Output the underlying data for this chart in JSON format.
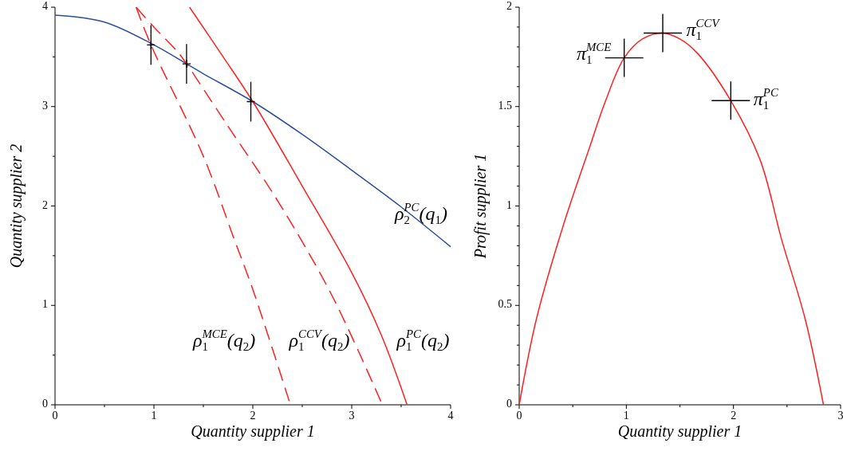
{
  "chart_data": [
    {
      "type": "line",
      "xlabel": "Quantity supplier 1",
      "ylabel": "Quantity supplier 2",
      "xlim": [
        0,
        4
      ],
      "ylim": [
        0,
        4
      ],
      "xticks": [
        0,
        {
          "value": 0.5,
          "label": null
        },
        1,
        {
          "value": 1.5,
          "label": null
        },
        2,
        {
          "value": 2.5,
          "label": null
        },
        3,
        {
          "value": 3.5,
          "label": null
        },
        4
      ],
      "yticks": [
        0,
        {
          "value": 0.5,
          "label": null
        },
        1,
        {
          "value": 1.5,
          "label": null
        },
        2,
        {
          "value": 2.5,
          "label": null
        },
        3,
        {
          "value": 3.5,
          "label": null
        },
        4
      ],
      "series": [
        {
          "name": "ρ$_{2}$$^{PC}$(q$_{1}$)",
          "color": "#2b4ea0",
          "line_style": "solid",
          "x": [
            0,
            0.5,
            1,
            1.33,
            1.5,
            2,
            2.5,
            3,
            3.5,
            4
          ],
          "values": [
            3.92,
            3.85,
            3.62,
            3.43,
            3.33,
            3.05,
            2.72,
            2.36,
            1.99,
            1.59
          ]
        },
        {
          "name": "ρ$_{1}$$^{PC}$(q$_{2}$)",
          "color": "#ff2020",
          "line_style": "solid",
          "x": [
            1.36,
            1.7,
            2,
            2.5,
            3,
            3.3,
            3.56
          ],
          "values": [
            4,
            3.5,
            3.05,
            2.2,
            1.33,
            0.7,
            0
          ]
        },
        {
          "name": "ρ$_{1}$$^{CCV}$(q$_{2}$)",
          "color": "#ff2020",
          "line_style": "dashed",
          "x": [
            0.82,
            1,
            1.24,
            1.33,
            1.75,
            2.24,
            2.8,
            3.31
          ],
          "values": [
            4,
            3.8,
            3.55,
            3.43,
            2.8,
            2.07,
            1.1,
            0
          ]
        },
        {
          "name": "ρ$_{1}$$^{MCE}$(q$_{2}$)",
          "color": "#ff2020",
          "line_style": "dashed",
          "x": [
            0.82,
            0.97,
            1.5,
            1.81,
            2,
            2.38
          ],
          "values": [
            4,
            3.62,
            2.5,
            1.67,
            1.16,
            0
          ]
        },
        {
          "type": "scatter",
          "color": "#000000",
          "marker": "cross",
          "x": [
            0.97,
            1.33,
            1.98
          ],
          "values": [
            3.62,
            3.43,
            3.05
          ],
          "errors": [
            0.2,
            0.2,
            0.2
          ]
        }
      ]
    },
    {
      "type": "line",
      "xlabel": "Quantity supplier 1",
      "ylabel": "Profit supplier 1",
      "xlim": [
        0,
        3
      ],
      "ylim": [
        0,
        2
      ],
      "xticks": [
        0,
        {
          "value": 0.5,
          "label": null
        },
        1,
        {
          "value": 1.5,
          "label": null
        },
        2,
        {
          "value": 2.5,
          "label": null
        },
        3
      ],
      "yticks": [
        0,
        {
          "value": 0.1,
          "label": null
        },
        {
          "value": 0.2,
          "label": null
        },
        {
          "value": 0.3,
          "label": null
        },
        {
          "value": 0.4,
          "label": null
        },
        0.5,
        {
          "value": 0.6,
          "label": null
        },
        {
          "value": 0.7,
          "label": null
        },
        {
          "value": 0.8,
          "label": null
        },
        {
          "value": 0.9,
          "label": null
        },
        1,
        {
          "value": 1.1,
          "label": null
        },
        {
          "value": 1.2,
          "label": null
        },
        {
          "value": 1.3,
          "label": null
        },
        {
          "value": 1.4,
          "label": null
        },
        1.5,
        {
          "value": 1.6,
          "label": null
        },
        {
          "value": 1.7,
          "label": null
        },
        {
          "value": 1.8,
          "label": null
        },
        {
          "value": 1.9,
          "label": null
        },
        2
      ],
      "series": [
        {
          "color": "#ff2020",
          "line_style": "solid",
          "x": [
            0,
            0.16,
            0.41,
            0.66,
            0.8,
            0.98,
            1.15,
            1.34,
            1.5,
            1.66,
            1.975,
            2.25,
            2.45,
            2.67,
            2.84
          ],
          "values": [
            0,
            0.43,
            0.9,
            1.3,
            1.52,
            1.745,
            1.84,
            1.87,
            1.84,
            1.77,
            1.53,
            1.23,
            0.83,
            0.43,
            0
          ]
        },
        {
          "type": "scatter",
          "name": "π$_{1}$$^{MCE}$",
          "color": "#000000",
          "marker": "cross",
          "x": [
            0.98
          ],
          "values": [
            1.745
          ]
        },
        {
          "type": "scatter",
          "name": "π$_{1}$$^{CCV}$",
          "color": "#000000",
          "marker": "cross",
          "x": [
            1.34
          ],
          "values": [
            1.87
          ]
        },
        {
          "type": "scatter",
          "name": "π$_{1}$$^{PC}$",
          "color": "#000000",
          "marker": "cross",
          "x": [
            1.975
          ],
          "values": [
            1.53
          ]
        }
      ]
    }
  ]
}
